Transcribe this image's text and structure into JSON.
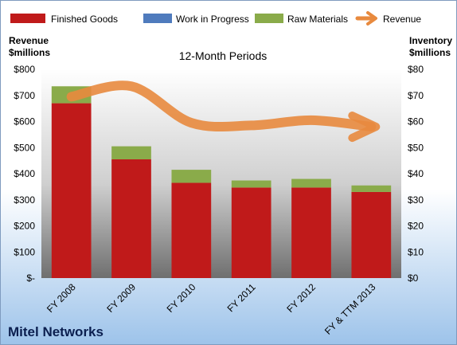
{
  "company": "Mitel Networks",
  "colors": {
    "finished_goods": "#c01a1a",
    "work_in_progress": "#4f7bbd",
    "raw_materials": "#8aab4a",
    "revenue": "#e88a3e"
  },
  "chart_data": {
    "type": "bar",
    "subtitle": "12-Month Periods",
    "y_left_label_line1": "Revenue",
    "y_left_label_line2": "$millions",
    "y_right_label_line1": "Inventory",
    "y_right_label_line2": "$millions",
    "categories": [
      "FY 2008",
      "FY 2009",
      "FY 2010",
      "FY 2011",
      "FY 2012",
      "FY & TTM 2013"
    ],
    "left_ticks": [
      "$-",
      "$100",
      "$200",
      "$300",
      "$400",
      "$500",
      "$600",
      "$700",
      "$800"
    ],
    "right_ticks": [
      "$0",
      "$10",
      "$20",
      "$30",
      "$40",
      "$50",
      "$60",
      "$70",
      "$80"
    ],
    "ylim_left": [
      0,
      800
    ],
    "ylim_right": [
      0,
      80
    ],
    "stacked": true,
    "series": [
      {
        "name": "Finished Goods",
        "axis": "right",
        "values": [
          67,
          45.5,
          36.5,
          34.7,
          34.7,
          33
        ]
      },
      {
        "name": "Work in Progress",
        "axis": "right",
        "values": [
          0,
          0,
          0,
          0,
          0,
          0
        ]
      },
      {
        "name": "Raw Materials",
        "axis": "right",
        "values": [
          6.5,
          5,
          5,
          2.7,
          3.3,
          2.5
        ]
      },
      {
        "name": "Revenue",
        "axis": "left",
        "type": "line",
        "values": [
          695,
          735,
          595,
          585,
          605,
          580
        ]
      }
    ],
    "legend_position": "top",
    "grid": false
  }
}
